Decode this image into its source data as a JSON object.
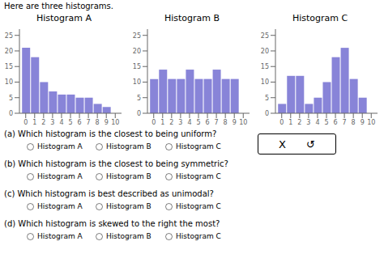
{
  "title": "Here are three histograms.",
  "chart_data": [
    {
      "type": "bar",
      "title": "Histogram A",
      "x": [
        0,
        1,
        2,
        3,
        4,
        5,
        6,
        7,
        8,
        9
      ],
      "values": [
        21,
        18,
        10,
        7,
        6,
        6,
        5,
        5,
        3,
        2
      ],
      "xlim": [
        -0.7,
        10.7
      ],
      "xticks": [
        0,
        1,
        2,
        3,
        4,
        5,
        6,
        7,
        8,
        9,
        10
      ],
      "ylim": [
        0,
        27
      ],
      "yticks": [
        0,
        5,
        10,
        15,
        20,
        25
      ],
      "color": "#8884d8",
      "grid": false
    },
    {
      "type": "bar",
      "title": "Histogram B",
      "x": [
        0,
        1,
        2,
        3,
        4,
        5,
        6,
        7,
        8,
        9
      ],
      "values": [
        11,
        14,
        11,
        11,
        14,
        11,
        11,
        14,
        11,
        11
      ],
      "xlim": [
        -0.7,
        10.7
      ],
      "xticks": [
        0,
        1,
        2,
        3,
        4,
        5,
        6,
        7,
        8,
        9,
        10
      ],
      "ylim": [
        0,
        27
      ],
      "yticks": [
        0,
        5,
        10,
        15,
        20,
        25
      ],
      "color": "#8884d8",
      "grid": false
    },
    {
      "type": "bar",
      "title": "Histogram C",
      "x": [
        0,
        1,
        2,
        3,
        4,
        5,
        6,
        7,
        8,
        9
      ],
      "values": [
        3,
        12,
        12,
        3,
        5,
        10,
        18,
        21,
        11,
        5
      ],
      "xlim": [
        -0.7,
        10.7
      ],
      "xticks": [
        0,
        1,
        2,
        3,
        4,
        5,
        6,
        7,
        8,
        9,
        10
      ],
      "ylim": [
        0,
        27
      ],
      "yticks": [
        0,
        5,
        10,
        15,
        20,
        25
      ],
      "color": "#8884d8",
      "grid": false
    }
  ],
  "annotations": [
    "(a) Which histogram is the closest to being uniform?",
    "(b) Which histogram is the closest to being symmetric?",
    "(c) Which histogram is best described as unimodal?",
    "(d) Which histogram is skewed to the right the most?"
  ],
  "choices": [
    "Histogram A",
    "Histogram B",
    "Histogram C"
  ],
  "buttons": [
    "X",
    "↺"
  ]
}
